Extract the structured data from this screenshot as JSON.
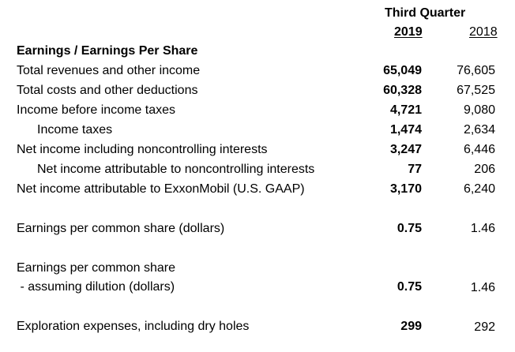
{
  "header": {
    "period": "Third Quarter",
    "year_current": "2019",
    "year_prior": "2018"
  },
  "section_title": "Earnings / Earnings Per Share",
  "rows": [
    {
      "label": "Total revenues and other income",
      "v2019": "65,049",
      "v2018": "76,605"
    },
    {
      "label": "Total costs and other deductions",
      "v2019": "60,328",
      "v2018": "67,525"
    },
    {
      "label": "Income before income taxes",
      "v2019": "4,721",
      "v2018": "9,080"
    },
    {
      "label": "Income taxes",
      "v2019": "1,474",
      "v2018": "2,634"
    },
    {
      "label": "Net income including noncontrolling interests",
      "v2019": "3,247",
      "v2018": "6,446"
    },
    {
      "label": "Net income attributable to noncontrolling interests",
      "v2019": "77",
      "v2018": "206"
    },
    {
      "label": "Net income attributable to ExxonMobil (U.S. GAAP)",
      "v2019": "3,170",
      "v2018": "6,240"
    }
  ],
  "eps": {
    "label": "Earnings per common share (dollars)",
    "v2019": "0.75",
    "v2018": "1.46"
  },
  "eps_diluted": {
    "label_line1": "Earnings per common share",
    "label_line2": " - assuming dilution (dollars)",
    "v2019": "0.75",
    "v2018": "1.46"
  },
  "exploration": {
    "label": "Exploration expenses, including dry holes",
    "v2019": "299",
    "v2018": "292"
  }
}
